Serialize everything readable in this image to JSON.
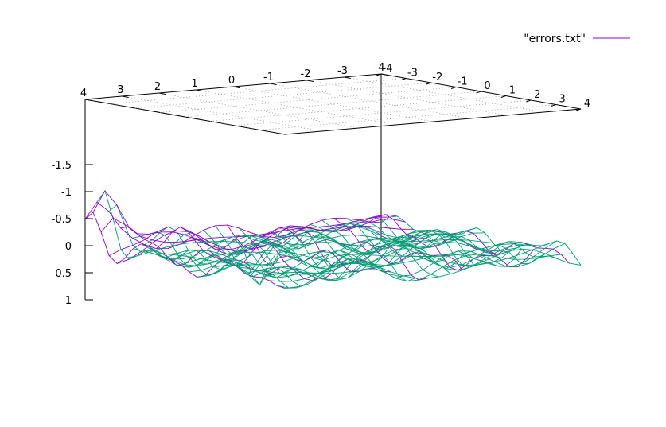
{
  "chart_data": {
    "type": "surface",
    "title": "",
    "legend": {
      "label": "\"errors.txt\"",
      "placement": "top-right",
      "color_front": "#9400d3",
      "color_back": "#009e73"
    },
    "x_range": [
      -4,
      4
    ],
    "y_range": [
      -4,
      4
    ],
    "z_range": [
      -1.5,
      1
    ],
    "x_ticks": [
      "-4",
      "-3",
      "-2",
      "-1",
      "0",
      "1",
      "2",
      "3",
      "4"
    ],
    "y_ticks": [
      "4",
      "3",
      "2",
      "1",
      "0",
      "-1",
      "-2",
      "-3",
      "-4"
    ],
    "z_ticks": [
      "-1.5",
      "-1",
      "-0.5",
      "0",
      "0.5",
      "1"
    ],
    "z_reversed": true,
    "base_grid": "dotted",
    "mesh_resolution": 25
  }
}
